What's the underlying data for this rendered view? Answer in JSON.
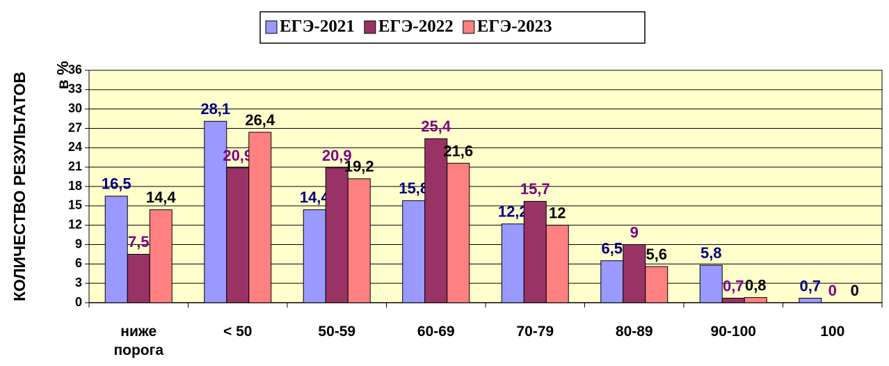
{
  "chart_data": {
    "type": "bar",
    "y_label": [
      "КОЛИЧЕСТВО РЕЗУЛЬТАТОВ",
      "в %"
    ],
    "categories": [
      "ниже порога",
      "< 50",
      "50-59",
      "60-69",
      "70-79",
      "80-89",
      "90-100",
      "100"
    ],
    "series": [
      {
        "name": "ЕГЭ-2021",
        "color": "#9999ff",
        "label_color": "#000080",
        "values": [
          16.5,
          28.1,
          14.4,
          15.8,
          12.2,
          6.5,
          5.8,
          0.7
        ],
        "value_labels": [
          "16,5",
          "28,1",
          "14,4",
          "15,8",
          "12,2",
          "6,5",
          "5,8",
          "0,7"
        ]
      },
      {
        "name": "ЕГЭ-2022",
        "color": "#993366",
        "label_color": "#800080",
        "values": [
          7.5,
          20.9,
          20.9,
          25.4,
          15.7,
          9,
          0.7,
          0
        ],
        "value_labels": [
          "7,5",
          "20,9",
          "20,9",
          "25,4",
          "15,7",
          "9",
          "0,7",
          "0"
        ]
      },
      {
        "name": "ЕГЭ-2023",
        "color": "#ff8080",
        "label_color": "#000000",
        "values": [
          14.4,
          26.4,
          19.2,
          21.6,
          12,
          5.6,
          0.8,
          0
        ],
        "value_labels": [
          "14,4",
          "26,4",
          "19,2",
          "21,6",
          "12",
          "5,6",
          "0,8",
          "0"
        ]
      }
    ],
    "ylim": [
      0,
      36
    ],
    "yticks": [
      0,
      3,
      6,
      9,
      12,
      15,
      18,
      21,
      24,
      27,
      30,
      33,
      36
    ],
    "grid": true,
    "plot_background": "#ffffcc",
    "legend": "top"
  }
}
